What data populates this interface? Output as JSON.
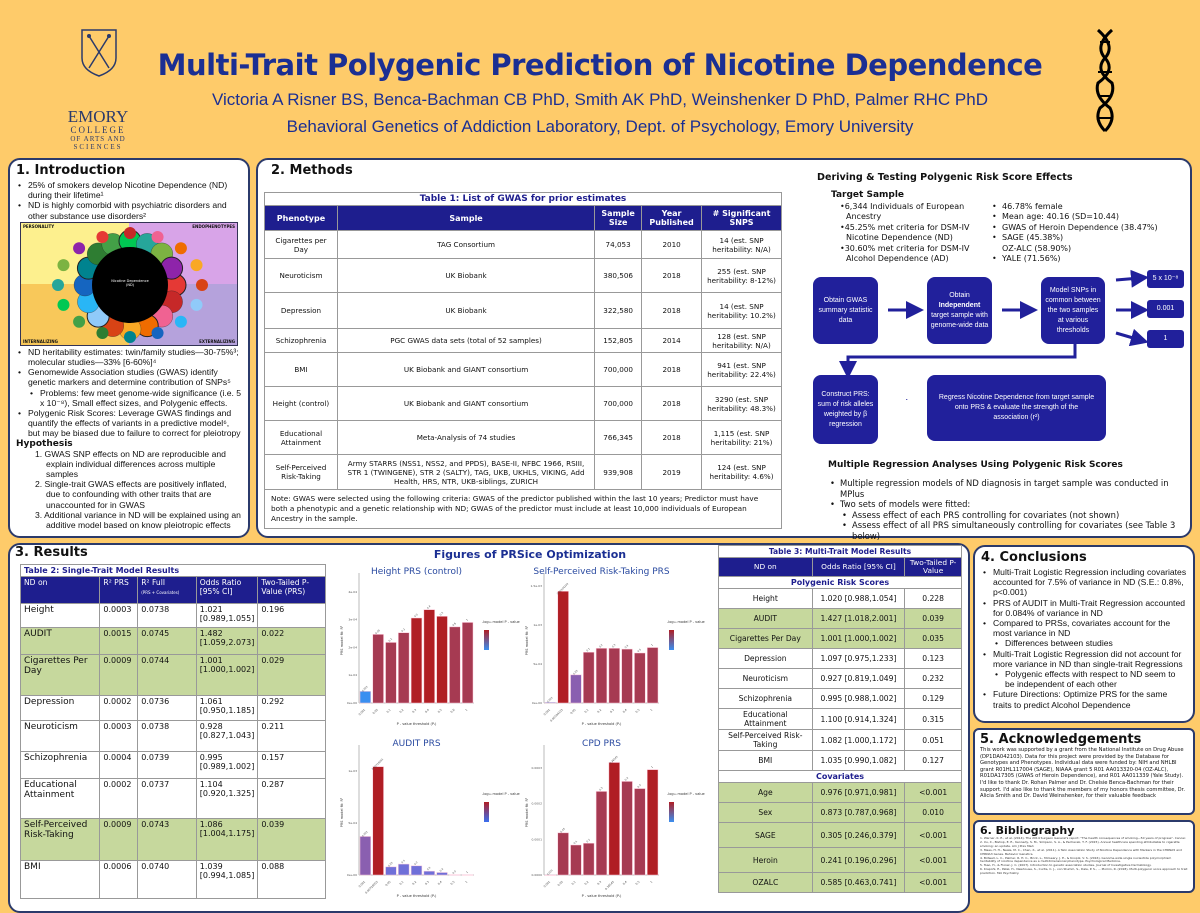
{
  "header": {
    "title": "Multi-Trait Polygenic Prediction of Nicotine Dependence",
    "authors": "Victoria A Risner BS, Benca-Bachman CB PhD, Smith AK PhD, Weinshenker D PhD, Palmer RHC PhD",
    "affiliation": "Behavioral Genetics of Addiction Laboratory, Dept. of Psychology, Emory University",
    "logo_text": [
      "EMORY",
      "COLLEGE",
      "OF ARTS AND",
      "SCIENCES"
    ]
  },
  "colors": {
    "background": "#fecb6a",
    "title_blue": "#1b2f93",
    "table_header": "#1e1e8e",
    "highlight_green": "#c6d89d",
    "flow_box": "#21209b"
  },
  "intro": {
    "heading": "1. Introduction",
    "bullets_top": [
      "25% of smokers develop Nicotine Dependence (ND) during their lifetime¹",
      "ND is highly comorbid with psychiatric disorders and other substance use disorders²"
    ],
    "figure": {
      "quadrants": [
        "PERSONALITY",
        "ENDOPHENOTYPES",
        "INTERNALIZING",
        "EXTERNALIZING"
      ],
      "center": "Nicotine Dependence (ND)"
    },
    "bullets_bottom": [
      {
        "text": "ND heritability estimates: twin/family studies—30-75%³; molecular studies—33% [6-60%]⁴",
        "level": 1
      },
      {
        "text": "Genomewide Association studies (GWAS) identify genetic markers and determine contribution of SNPs⁵",
        "level": 1
      },
      {
        "text": "Problems: few meet genome-wide significance (i.e. 5 x 10⁻⁸), Small effect sizes, and Polygenic effects.",
        "level": 2
      },
      {
        "text": "Polygenic Risk Scores: Leverage GWAS findings and quantify the effects of variants in a predictive model⁶, but may be biased due to failure to correct for pleiotropy",
        "level": 1
      }
    ],
    "hypothesis_heading": "Hypothesis",
    "hypotheses": [
      "1. GWAS SNP effects on ND are reproducible and explain individual differences across multiple samples",
      "2. Single-trait GWAS effects are positively inflated, due to confounding with other traits that are unaccounted for in GWAS",
      "3. Additional variance in ND will be explained using an additive model based on know pleiotropic effects"
    ]
  },
  "methods": {
    "heading": "2. Methods",
    "table1": {
      "caption": "Table 1: List of GWAS for prior estimates",
      "columns": [
        "Phenotype",
        "Sample",
        "Sample Size",
        "Year Published",
        "# Significant SNPS"
      ],
      "rows": [
        [
          "Cigarettes per Day",
          "TAG Consortium",
          "74,053",
          "2010",
          "14 (est. SNP heritability: N/A)"
        ],
        [
          "Neuroticism",
          "UK Biobank",
          "380,506",
          "2018",
          "255 (est. SNP heritability: 8-12%)"
        ],
        [
          "Depression",
          "UK Biobank",
          "322,580",
          "2018",
          "14 (est. SNP heritability: 10.2%)"
        ],
        [
          "Schizophrenia",
          "PGC GWAS data sets (total of 52 samples)",
          "152,805",
          "2014",
          "128 (est. SNP heritability: N/A)"
        ],
        [
          "BMI",
          "UK Biobank and GIANT consortium",
          "700,000",
          "2018",
          "941 (est. SNP heritability: 22.4%)"
        ],
        [
          "Height (control)",
          "UK Biobank and GIANT consortium",
          "700,000",
          "2018",
          "3290 (est. SNP heritability: 48.3%)"
        ],
        [
          "Educational Attainment",
          "Meta-Analysis of 74 studies",
          "766,345",
          "2018",
          "1,115 (est. SNP heritability: 21%)"
        ],
        [
          "Self-Perceived Risk-Taking",
          "Army STARRS (NSS1, NSS2, and PPDS), BASE-II, NFBC 1966, RSIII, STR 1 (TWINGENE), STR 2 (SALTY), TAG, UKB, UKHLS, VIKING, Add Health, HRS, NTR, UKB-siblings, ZURICH",
          "939,908",
          "2019",
          "124 (est. SNP heritability: 4.6%)"
        ]
      ],
      "note": "Note: GWAS were selected using the following criteria: GWAS of the predictor published within the last 10 years; Predictor must have both a phenotypic and a genetic relationship with ND; GWAS of the predictor must include at least 10,000 individuals of European Ancestry in the sample."
    },
    "deriving_heading": "Deriving & Testing Polygenic Risk Score Effects",
    "target_heading": "Target Sample",
    "target_left": [
      "•6,344 Individuals of European Ancestry",
      "•45.25% met criteria for DSM-IV Nicotine Dependence (ND)",
      "•30.60% met criteria for DSM-IV Alcohol Dependence (AD)"
    ],
    "target_right": [
      "46.78% female",
      "Mean age: 40.16 (SD=10.44)",
      "GWAS of Heroin Dependence (38.47%)",
      "SAGE (45.38%)\nOZ-ALC (58.90%)",
      "YALE (71.56%)"
    ],
    "flow": {
      "box1": "Obtain GWAS summary statistic data",
      "box2_pre": "Obtain",
      "box2_bold": "Independent",
      "box2_post": "target sample with genome-wide data",
      "box3": "Model SNPs in common between the two samples at various thresholds",
      "thresholds": [
        "5 x 10⁻⁸",
        "0.001",
        "1"
      ],
      "box4": "Construct PRS: sum of risk alleles weighted by β regression",
      "box5": "Regress Nicotine Dependence from target sample onto PRS & evaluate the strength of the association (r²)"
    },
    "regression_heading": "Multiple Regression Analyses Using Polygenic Risk Scores",
    "regression_bullets": [
      {
        "text": "Multiple regression models of ND diagnosis in target sample was conducted in MPlus",
        "level": 1
      },
      {
        "text": "Two sets of models were fitted:",
        "level": 1
      },
      {
        "text": "Assess effect of each PRS controlling for covariates (not shown)",
        "level": 2
      },
      {
        "text": "Assess effect of all PRS simultaneously controlling for covariates (see Table 3 below)",
        "level": 2
      }
    ]
  },
  "results": {
    "heading": "3. Results",
    "table2": {
      "caption": "Table 2: Single-Trait Model Results",
      "columns": [
        "ND on",
        "R² PRS",
        "R² Full",
        "Odds Ratio [95% CI]",
        "Two-Tailed P-Value (PRS)"
      ],
      "column_note": "(PRS + Covariates)",
      "rows": [
        {
          "cells": [
            "Height",
            "0.0003",
            "0.0738",
            "1.021 [0.989,1.055]",
            "0.196"
          ],
          "significant": false
        },
        {
          "cells": [
            "AUDIT",
            "0.0015",
            "0.0745",
            "1.482 [1.059,2.073]",
            "0.022"
          ],
          "significant": true
        },
        {
          "cells": [
            "Cigarettes Per Day",
            "0.0009",
            "0.0744",
            "1.001 [1.000,1.002]",
            "0.029"
          ],
          "significant": true
        },
        {
          "cells": [
            "Depression",
            "0.0002",
            "0.0736",
            "1.061 [0.950,1.185]",
            "0.292"
          ],
          "significant": false
        },
        {
          "cells": [
            "Neuroticism",
            "0.0003",
            "0.0738",
            "0.928 [0.827,1.043]",
            "0.211"
          ],
          "significant": false
        },
        {
          "cells": [
            "Schizophrenia",
            "0.0004",
            "0.0739",
            "0.995 [0.989,1.002]",
            "0.157"
          ],
          "significant": false
        },
        {
          "cells": [
            "Educational Attainment",
            "0.0002",
            "0.0737",
            "1.104 [0.920,1.325]",
            "0.287"
          ],
          "significant": false
        },
        {
          "cells": [
            "Self-Perceived Risk-Taking",
            "0.0009",
            "0.0743",
            "1.086 [1.004,1.175]",
            "0.039"
          ],
          "significant": true
        },
        {
          "cells": [
            "BMI",
            "0.0006",
            "0.0740",
            "1.039 [0.994,1.085]",
            "0.088"
          ],
          "significant": false
        }
      ]
    },
    "figures_heading": "Figures of PRSice Optimization",
    "table3": {
      "caption": "Table 3: Multi-Trait Model Results",
      "columns": [
        "ND on",
        "Odds Ratio [95% CI]",
        "Two-Tailed P-Value"
      ],
      "section_prs": "Polygenic Risk Scores",
      "prs_rows": [
        {
          "cells": [
            "Height",
            "1.020 [0.988,1.054]",
            "0.228"
          ],
          "significant": false
        },
        {
          "cells": [
            "AUDIT",
            "1.427 [1.018,2.001]",
            "0.039"
          ],
          "significant": true
        },
        {
          "cells": [
            "Cigarettes Per Day",
            "1.001 [1.000,1.002]",
            "0.035"
          ],
          "significant": true
        },
        {
          "cells": [
            "Depression",
            "1.097 [0.975,1.233]",
            "0.123"
          ],
          "significant": false
        },
        {
          "cells": [
            "Neuroticism",
            "0.927 [0.819,1.049]",
            "0.232"
          ],
          "significant": false
        },
        {
          "cells": [
            "Schizophrenia",
            "0.995 [0.988,1.002]",
            "0.129"
          ],
          "significant": false
        },
        {
          "cells": [
            "Educational Attainment",
            "1.100 [0.914,1.324]",
            "0.315"
          ],
          "significant": false
        },
        {
          "cells": [
            "Self-Perceived Risk-Taking",
            "1.082 [1.000,1.172]",
            "0.051"
          ],
          "significant": false
        },
        {
          "cells": [
            "BMI",
            "1.035 [0.990,1.082]",
            "0.127"
          ],
          "significant": false
        }
      ],
      "section_cov": "Covariates",
      "cov_rows": [
        {
          "cells": [
            "Age",
            "0.976 [0.971,0.981]",
            "<0.001"
          ],
          "significant": true
        },
        {
          "cells": [
            "Sex",
            "0.873 [0.787,0.968]",
            "0.010"
          ],
          "significant": true
        },
        {
          "cells": [
            "SAGE",
            "0.305 [0.246,0.379]",
            "<0.001"
          ],
          "significant": true
        },
        {
          "cells": [
            "Heroin",
            "0.241 [0.196,0.296]",
            "<0.001"
          ],
          "significant": true
        },
        {
          "cells": [
            "OZALC",
            "0.585 [0.463,0.741]",
            "<0.001"
          ],
          "significant": true
        }
      ]
    }
  },
  "chart_data": [
    {
      "type": "bar",
      "title": "Height PRS (control)",
      "xlabel": "P - value threshold (Pₜ)",
      "ylabel": "PRS model fit: R²",
      "categories": [
        "0.001",
        "0.05",
        "0.1",
        "0.2",
        "0.3",
        "0.4",
        "0.5",
        "0.6",
        "1"
      ],
      "values": [
        4.2e-05,
        0.000247,
        0.000218,
        0.000253,
        0.000306,
        0.000336,
        0.000312,
        0.000274,
        0.00029
      ],
      "ylim": [
        0,
        0.00045
      ],
      "yticks": [
        "0e+00",
        "1e-04",
        "2e-04",
        "3e-04",
        "4e-04"
      ],
      "ytick_values": [
        0,
        0.0001,
        0.0002,
        0.0003,
        0.0004
      ],
      "legend": "-log₁₀ model P - value",
      "legend_placement": "right",
      "color_low": "#3a8ff0",
      "color_high": "#b01e24",
      "low_bars": [
        0
      ]
    },
    {
      "type": "bar",
      "title": "Self-Perceived Risk-Taking PRS",
      "xlabel": "P - value threshold (Pₜ)",
      "ylabel": "PRS model fit: R²",
      "categories": [
        "0.001",
        "0.00104333",
        "0.05",
        "0.1",
        "0.2",
        "0.3",
        "0.4",
        "0.5",
        "1"
      ],
      "values": [
        1e-05,
        0.00143,
        0.00036,
        0.00065,
        0.0007,
        0.0007,
        0.00069,
        0.00064,
        0.00071
      ],
      "ylim": [
        0,
        0.0016
      ],
      "yticks": [
        "0e+00",
        "5e-04",
        "1e-03",
        "1.5e-03"
      ],
      "ytick_values": [
        0,
        0.0005,
        0.001,
        0.0015
      ],
      "legend": "-log₁₀ model P - value",
      "legend_placement": "right",
      "color_low": "#3a8ff0",
      "color_high": "#b01e24",
      "low_bars": [
        0,
        2
      ]
    },
    {
      "type": "bar",
      "title": "AUDIT PRS",
      "xlabel": "P - value threshold (Pₜ)",
      "ylabel": "PRS model fit: R²",
      "categories": [
        "0.001",
        "0.00728055",
        "0.05",
        "0.1",
        "0.2",
        "0.3",
        "0.4",
        "0.5",
        "1"
      ],
      "values": [
        0.00037,
        0.00104,
        7.8e-05,
        0.000105,
        8.8e-05,
        3.7e-05,
        2.4e-05,
        3e-06,
        2e-06
      ],
      "ylim": [
        0,
        0.0012
      ],
      "yticks": [
        "0e+00",
        "5e-04",
        "1e-03"
      ],
      "ytick_values": [
        0,
        0.0005,
        0.001
      ],
      "legend": "-log₁₀ model P - value",
      "legend_placement": "right",
      "color_low": "#3a6ff0",
      "color_high": "#b01e24",
      "low_bars": [
        2,
        3,
        4,
        5,
        6,
        7,
        8
      ]
    },
    {
      "type": "bar",
      "title": "CPD PRS",
      "xlabel": "P - value threshold (Pₜ)",
      "ylabel": "PRS model fit: R²",
      "categories": [
        "0.001",
        "0.05",
        "0.1",
        "0.2",
        "0.3",
        "0.36545",
        "0.4",
        "0.5",
        "1"
      ],
      "values": [
        2e-07,
        0.000118,
        8.4e-05,
        8.9e-05,
        0.000234,
        0.000315,
        0.000262,
        0.000242,
        0.000295
      ],
      "ylim": [
        0,
        0.00035
      ],
      "yticks": [
        "0.0000",
        "0.0001",
        "0.0002",
        "0.0003"
      ],
      "ytick_values": [
        0,
        0.0001,
        0.0002,
        0.0003
      ],
      "legend": "-log₁₀ model P - value",
      "legend_placement": "right",
      "color_low": "#3a8ff0",
      "color_high": "#b01e24",
      "low_bars": [
        0
      ]
    }
  ],
  "conclusions": {
    "heading": "4. Conclusions",
    "bullets": [
      {
        "text": "Multi-Trait Logistic Regression including covariates accounted for 7.5% of variance in ND (S.E.: 0.8%, p<0.001)",
        "level": 1
      },
      {
        "text": "PRS of AUDIT in Multi-Trait Regression accounted for 0.084% of variance in ND",
        "level": 1
      },
      {
        "text": "Compared to PRSs, covariates account for the most variance in ND",
        "level": 1
      },
      {
        "text": "Differences between studies",
        "level": 2
      },
      {
        "text": "Multi-Trait Logistic Regression did not account for more variance in ND than single-trait Regressions",
        "level": 1
      },
      {
        "text": "Polygenic effects with respect to ND seem to be independent of each other",
        "level": 2
      },
      {
        "text": "Future Directions: Optimize PRS for the same traits to predict Alcohol Dependence",
        "level": 1
      }
    ]
  },
  "acknowledgements": {
    "heading": "5. Acknowledgements",
    "text": "This work was supported by a grant from the National Institute on Drug Abuse (DP1DA042103). Data for this project were provided by the Database for Genotypes and Phenotypes. Individual data were funded by: NIH and NHLBI grant R01HL117004 (SAGE), NIAAA grant 5 R01 AA013320-04 (OZ-ALC), R01DA17305 (GWAS of Heroin Dependence), and R01 AA011339 (Yale Study). I'd like to thank Dr. Rohan Palmer and Dr. Chelsie Benca-Bachman for their support. I'd also like to thank the members of my honors thesis committee, Dr. Alicia Smith and Dr. David Weinshenker, for their valuable feedback"
  },
  "bibliography": {
    "heading": "6. Bibliography",
    "items": [
      "1. Warner, K. E., et al. (2014). The 2014 Surgeon General's report: \"The health consequences of smoking—50 years of progress\". Cancer.",
      "2. Xu, X., Bishop, E. E., Kennedy, S. M., Simpson, S. A., & Pechacek, T. F. (2015). Annual healthcare spending attributable to cigarette smoking: an update. Am J Prev Med.",
      "3. Maes, H. H., Neale, M. C., Chen, X., et al. (2011). A Twin Association Study of Nicotine Dependence with Markers in the CHRNA5 and CHRNA3 Genes. Behavior Genetics.",
      "4. Bidwell, L. C., Palmer, R. H. C., Brick, L., McGeary, J. E., & Knopik, V. S. (2016). Genome-wide single nucleotide polymorphism heritability of nicotine dependence as a multidimensional phenotype. Psychological Medicine.",
      "5. Tsao, H., & Florez, J. C. (2007). Introduction to genetic association studies. Journal of Investigative Dermatology.",
      "6. Krapohl, E., Patel, H., Newhouse, S., Curtis, C. J., von Stumm, S., Dale, P. S., ... Plomin, R. (2018). Multi-polygenic score approach to trait prediction. Mol Psychiatry."
    ]
  }
}
